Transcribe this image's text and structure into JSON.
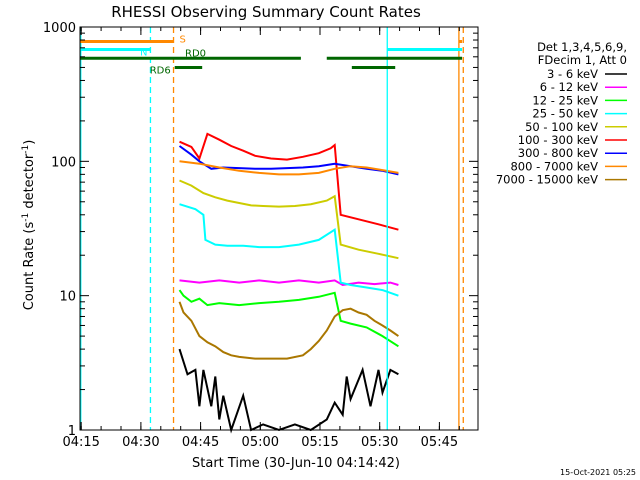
{
  "chart_data": {
    "type": "line",
    "title": "RHESSI Observing Summary Count Rates",
    "xlabel": "Start Time (30-Jun-10 04:14:42)",
    "ylabel": "Count Rate (s",
    "ylabel_sup1": "-1",
    "ylabel_mid": " detector",
    "ylabel_sup2": "-1",
    "ylabel_end": ")",
    "y_scale": "log",
    "ylim": [
      1,
      1000
    ],
    "xlim_minutes_after_04_14_42": [
      0,
      100
    ],
    "x_ticks": [
      {
        "label": "04:15",
        "min": 0.3
      },
      {
        "label": "04:30",
        "min": 15.3
      },
      {
        "label": "04:45",
        "min": 30.3
      },
      {
        "label": "05:00",
        "min": 45.3
      },
      {
        "label": "05:15",
        "min": 60.3
      },
      {
        "label": "05:30",
        "min": 75.3
      },
      {
        "label": "05:45",
        "min": 90.3
      }
    ],
    "y_ticks": [
      {
        "label": "1",
        "v": 1
      },
      {
        "label": "10",
        "v": 10
      },
      {
        "label": "100",
        "v": 100
      },
      {
        "label": "1000",
        "v": 1000
      }
    ],
    "legend": {
      "placement": "right",
      "header1": "Det 1,3,4,5,6,9,",
      "header2": "FDecim 1, Att 0"
    },
    "series": [
      {
        "name": "3 - 6 keV",
        "color": "#000000",
        "t": [
          25,
          27,
          29,
          30,
          31,
          33,
          34,
          35,
          36,
          38,
          41,
          43,
          46,
          50,
          54,
          58,
          62,
          64,
          66,
          67,
          68,
          71,
          73,
          75,
          76,
          78,
          80
        ],
        "v": [
          4.0,
          2.6,
          2.8,
          1.5,
          2.8,
          1.5,
          2.5,
          1.2,
          1.8,
          1.0,
          1.8,
          1.0,
          1.1,
          1.0,
          1.1,
          1.0,
          1.2,
          1.6,
          1.3,
          2.5,
          1.7,
          2.8,
          1.5,
          2.8,
          1.9,
          2.8,
          2.6
        ]
      },
      {
        "name": "6 - 12 keV",
        "color": "#ff00ff",
        "t": [
          25,
          30,
          35,
          40,
          45,
          50,
          55,
          60,
          64,
          66,
          70,
          74,
          78,
          80
        ],
        "v": [
          13,
          12.5,
          13,
          12.5,
          13,
          12.5,
          13,
          12.5,
          13,
          12,
          12.5,
          12.2,
          12.5,
          12
        ]
      },
      {
        "name": "12 - 25 keV",
        "color": "#00ff00",
        "t": [
          25,
          26,
          28,
          30,
          32,
          35,
          40,
          45,
          50,
          55,
          60,
          64,
          65.5,
          68,
          72,
          76,
          80
        ],
        "v": [
          11,
          10,
          9,
          9.5,
          8.5,
          8.8,
          8.5,
          8.8,
          9,
          9.3,
          9.8,
          10.5,
          6.5,
          6.2,
          5.8,
          5.0,
          4.2
        ]
      },
      {
        "name": "25 - 50 keV",
        "color": "#00ffff",
        "t": [
          25,
          29,
          31,
          31.5,
          34,
          37,
          41,
          45,
          50,
          55,
          60,
          64,
          65.5,
          68,
          72,
          76,
          80
        ],
        "v": [
          48,
          44,
          40,
          26,
          24,
          23.5,
          23.5,
          23,
          23,
          24,
          26,
          31,
          12.5,
          12,
          11.5,
          11,
          10
        ]
      },
      {
        "name": "50 - 100 keV",
        "color": "#cccc00",
        "t": [
          25,
          28,
          31,
          34,
          37,
          40,
          43,
          46,
          50,
          54,
          58,
          62,
          64,
          65.5,
          70,
          75,
          80
        ],
        "v": [
          72,
          66,
          58,
          54,
          51,
          49,
          47,
          46.5,
          46,
          46.5,
          48,
          51,
          55,
          24,
          22,
          20.5,
          19
        ]
      },
      {
        "name": "100 - 300 keV",
        "color": "#ff0000",
        "t": [
          25,
          28,
          30,
          32,
          35,
          38,
          41,
          44,
          48,
          52,
          56,
          60,
          63,
          64,
          65.5,
          70,
          75,
          80
        ],
        "v": [
          140,
          128,
          105,
          160,
          145,
          130,
          120,
          110,
          105,
          103,
          108,
          115,
          125,
          132,
          40,
          37,
          34,
          31
        ]
      },
      {
        "name": "300 - 800 keV",
        "color": "#0000ff",
        "t": [
          25,
          28,
          30,
          33,
          36,
          40,
          44,
          48,
          52,
          56,
          60,
          64,
          68,
          72,
          76,
          80
        ],
        "v": [
          130,
          112,
          100,
          88,
          90,
          89,
          88,
          88,
          89,
          90,
          92,
          96,
          92,
          88,
          85,
          80
        ]
      },
      {
        "name": "800 - 7000 keV",
        "color": "#ff8800",
        "t": [
          25,
          30,
          35,
          40,
          45,
          50,
          55,
          60,
          64,
          68,
          72,
          76,
          80
        ],
        "v": [
          100,
          96,
          90,
          85,
          82,
          80,
          80,
          82,
          88,
          92,
          90,
          86,
          82
        ]
      },
      {
        "name": "7000 - 15000 keV",
        "color": "#aa7700",
        "t": [
          25,
          26,
          28,
          30,
          32,
          34,
          36,
          38,
          40,
          44,
          48,
          52,
          56,
          58,
          60,
          62,
          64,
          66,
          68,
          70,
          72,
          74,
          76,
          78,
          80
        ],
        "v": [
          9,
          7.5,
          6.5,
          5,
          4.5,
          4.2,
          3.8,
          3.6,
          3.5,
          3.4,
          3.4,
          3.4,
          3.6,
          4.0,
          4.6,
          5.5,
          7,
          7.8,
          8,
          7.5,
          7.2,
          6.5,
          6,
          5.5,
          5
        ]
      }
    ],
    "flags": [
      {
        "label": "S",
        "color": "#ff8800",
        "v": 780,
        "segments": [
          [
            0,
            23.5
          ],
          [
            95.2,
            96
          ]
        ]
      },
      {
        "label": "N",
        "color": "#00ffff",
        "v": 680,
        "segments": [
          [
            0,
            17.7
          ],
          [
            77.2,
            96
          ]
        ]
      },
      {
        "label": "RD0",
        "color": "#006600",
        "v": 585,
        "segments": [
          [
            0,
            55.5
          ],
          [
            62,
            96
          ]
        ]
      },
      {
        "label": "RD6",
        "color": "#006600",
        "v": 500,
        "segments": [
          [
            23.8,
            30.7
          ],
          [
            68.3,
            79.2
          ]
        ]
      }
    ],
    "vertical_markers": [
      {
        "color": "#00ffff",
        "style": "solid",
        "min": 0.2
      },
      {
        "color": "#00ffff",
        "style": "dashed",
        "min": 17.7
      },
      {
        "color": "#ff8800",
        "style": "dashed",
        "min": 23.5
      },
      {
        "color": "#00ffff",
        "style": "solid",
        "min": 77.2
      },
      {
        "color": "#ff8800",
        "style": "solid",
        "min": 95.2
      },
      {
        "color": "#ff8800",
        "style": "dashed",
        "min": 96.3
      }
    ]
  },
  "footer": {
    "timestamp": "15-Oct-2021 05:25"
  }
}
